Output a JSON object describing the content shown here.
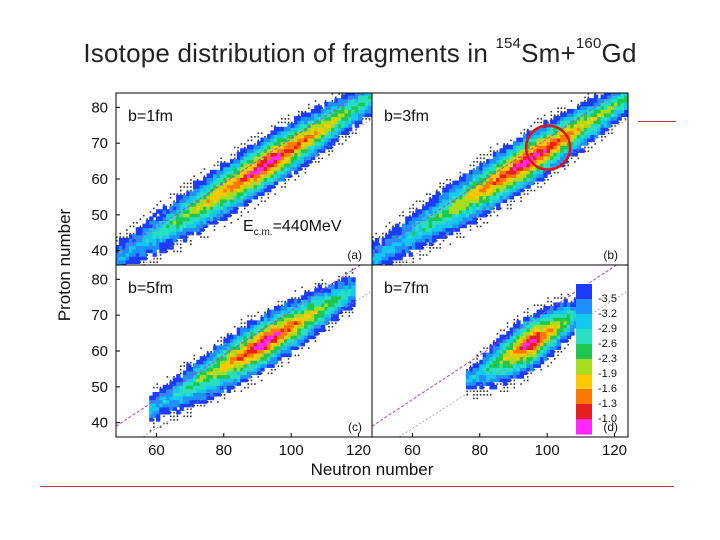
{
  "slide": {
    "title_main": "Isotope distribution of fragments in ",
    "title_mass1": "154",
    "title_elem1": "Sm+",
    "title_mass2": "160",
    "title_elem2": "Gd"
  },
  "chart_data": {
    "type": "heatmap",
    "layout": "2x2 panels",
    "xlabel": "Neutron number",
    "ylabel": "Proton number",
    "xlim": [
      48,
      124
    ],
    "ylim": [
      36,
      84
    ],
    "x_ticks": [
      60,
      80,
      100,
      120
    ],
    "y_ticks": [
      40,
      50,
      60,
      70,
      80
    ],
    "energy_label": "E",
    "energy_subscript": "c.m.",
    "energy_value": "=440MeV",
    "panels": [
      {
        "label": "b=1fm",
        "tag": "(a)",
        "band_n": [
          50,
          122
        ],
        "band_z": [
          39,
          82
        ],
        "core_n": [
          84,
          102
        ],
        "core_z": [
          58,
          68
        ]
      },
      {
        "label": "b=3fm",
        "tag": "(b)",
        "band_n": [
          50,
          122
        ],
        "band_z": [
          39,
          82
        ],
        "core_n": [
          86,
          102
        ],
        "core_z": [
          58,
          68
        ]
      },
      {
        "label": "b=5fm",
        "tag": "(c)",
        "band_n": [
          62,
          116
        ],
        "band_z": [
          46,
          76
        ],
        "core_n": [
          84,
          100
        ],
        "core_z": [
          59,
          67
        ]
      },
      {
        "label": "b=7fm",
        "tag": "(d)",
        "band_n": [
          80,
          108
        ],
        "band_z": [
          54,
          70
        ],
        "core_n": [
          88,
          102
        ],
        "core_z": [
          60,
          66
        ]
      }
    ],
    "colorbar": {
      "values": [
        "-3.5",
        "-3.2",
        "-2.9",
        "-2.6",
        "-2.3",
        "-1.9",
        "-1.6",
        "-1.3",
        "-1.0"
      ],
      "colors": [
        "#1b3cff",
        "#1e90ff",
        "#14c8f0",
        "#28e0c0",
        "#1ec850",
        "#aadc1e",
        "#ffc800",
        "#ff7800",
        "#e61e1e",
        "#ff28ff"
      ]
    },
    "annotation": {
      "shape": "circle",
      "color": "#e11111",
      "panel": "b=3fm",
      "center_n": 108,
      "center_z": 71
    }
  }
}
